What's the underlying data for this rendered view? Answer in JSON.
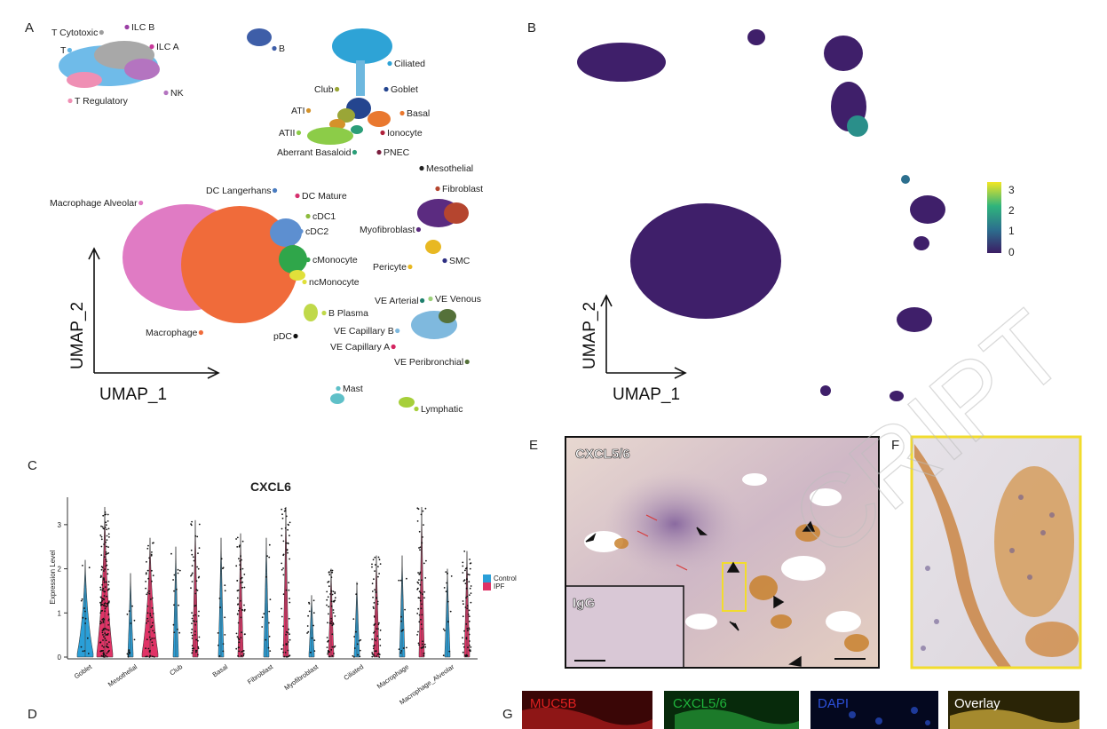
{
  "panels": {
    "a": "A",
    "b": "B",
    "c": "C",
    "d": "D",
    "e": "E",
    "f": "F",
    "g": "G"
  },
  "umap_a": {
    "x_axis": "UMAP_1",
    "y_axis": "UMAP_2",
    "clusters": [
      {
        "name": "T Cytotoxic",
        "color": "#9e9e9e"
      },
      {
        "name": "ILC B",
        "color": "#9b3fa5"
      },
      {
        "name": "ILC A",
        "color": "#c9399b"
      },
      {
        "name": "T",
        "color": "#63b6e6"
      },
      {
        "name": "NK",
        "color": "#b474c0"
      },
      {
        "name": "T Regulatory",
        "color": "#ef8fb4"
      },
      {
        "name": "B",
        "color": "#3e5ea8"
      },
      {
        "name": "Ciliated",
        "color": "#2ea3d6"
      },
      {
        "name": "Club",
        "color": "#9aa637"
      },
      {
        "name": "Goblet",
        "color": "#24458f"
      },
      {
        "name": "ATI",
        "color": "#d4922a"
      },
      {
        "name": "Basal",
        "color": "#e9782f"
      },
      {
        "name": "ATII",
        "color": "#8ccc48"
      },
      {
        "name": "Ionocyte",
        "color": "#b0223b"
      },
      {
        "name": "Aberrant Basaloid",
        "color": "#2b9e78"
      },
      {
        "name": "PNEC",
        "color": "#7a1e3e"
      },
      {
        "name": "Mesothelial",
        "color": "#222222"
      },
      {
        "name": "Fibroblast",
        "color": "#b5452f"
      },
      {
        "name": "DC Langerhans",
        "color": "#4a7cc0"
      },
      {
        "name": "DC Mature",
        "color": "#d6306e"
      },
      {
        "name": "Macrophage Alveolar",
        "color": "#e07bc4"
      },
      {
        "name": "cDC1",
        "color": "#8dbb3d"
      },
      {
        "name": "cDC2",
        "color": "#5d8fd0"
      },
      {
        "name": "Myofibroblast",
        "color": "#5b2b80"
      },
      {
        "name": "cMonocyte",
        "color": "#2fa64a"
      },
      {
        "name": "Pericyte",
        "color": "#e8b822"
      },
      {
        "name": "SMC",
        "color": "#2e2f82"
      },
      {
        "name": "ncMonocyte",
        "color": "#e0e03a"
      },
      {
        "name": "VE Arterial",
        "color": "#1e7f6d"
      },
      {
        "name": "VE Venous",
        "color": "#9cd07a"
      },
      {
        "name": "B Plasma",
        "color": "#c0d94a"
      },
      {
        "name": "Macrophage",
        "color": "#f06b3a"
      },
      {
        "name": "VE Capillary B",
        "color": "#7fb9de"
      },
      {
        "name": "pDC",
        "color": "#111111"
      },
      {
        "name": "VE Capillary A",
        "color": "#d42560"
      },
      {
        "name": "VE Peribronchial",
        "color": "#55713a"
      },
      {
        "name": "Mast",
        "color": "#5fc0c8"
      },
      {
        "name": "Lymphatic",
        "color": "#a6cf3a"
      }
    ]
  },
  "umap_b": {
    "x_axis": "UMAP_1",
    "y_axis": "UMAP_2",
    "colorbar_ticks": [
      "3",
      "2",
      "1",
      "0"
    ]
  },
  "chart_data": {
    "type": "violin",
    "title": "CXCL6",
    "xlabel": "",
    "ylabel": "Expression Level",
    "ylim": [
      0,
      3.5
    ],
    "yticks": [
      "3",
      "2",
      "1",
      "0"
    ],
    "categories": [
      "Goblet",
      "Mesothelial",
      "Club",
      "Basal",
      "Fibroblast",
      "Myofibroblast",
      "Ciliated",
      "Macrophage",
      "Macrophage_Alveolar"
    ],
    "series": [
      {
        "name": "Control",
        "color": "#2a9fd8",
        "max": [
          2.2,
          1.9,
          2.5,
          2.7,
          2.7,
          1.4,
          1.7,
          2.3,
          2.0
        ]
      },
      {
        "name": "IPF",
        "color": "#e03366",
        "max": [
          3.4,
          2.7,
          3.1,
          2.8,
          3.4,
          2.0,
          2.3,
          3.4,
          2.4
        ]
      }
    ]
  },
  "micrograph_e": {
    "stain_label": "CXCL5/6",
    "inset_label": "IgG"
  },
  "fluor_g": {
    "labels": [
      "MUC5B",
      "CXCL5/6",
      "DAPI",
      "Overlay"
    ]
  },
  "watermark": "CRIPT",
  "colors": {
    "viridis_low": "#3b1d64",
    "viridis_high": "#f2e624",
    "highlight_box": "#f2dc2d"
  }
}
